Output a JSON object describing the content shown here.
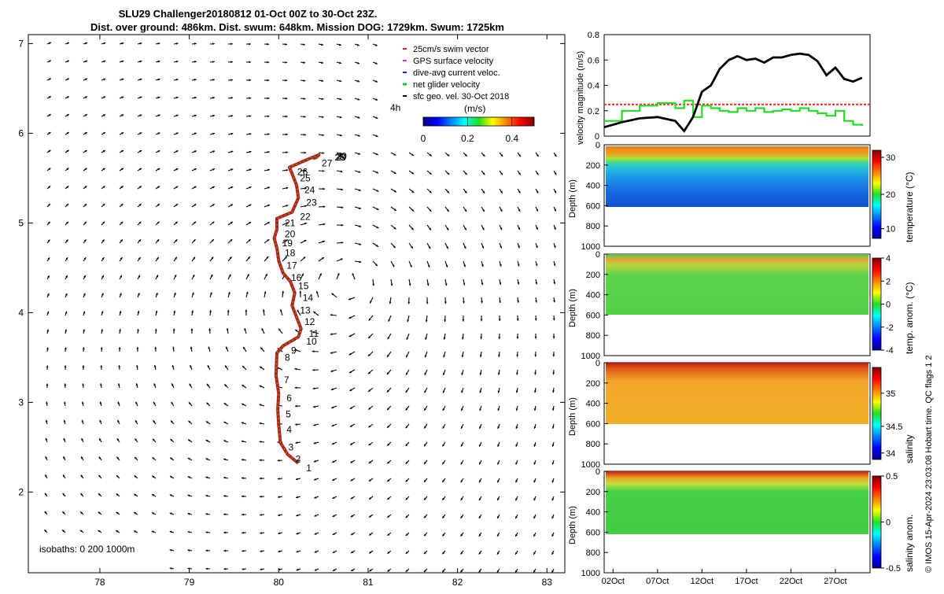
{
  "header": {
    "title_line1": "SLU29 Challenger20180812 01-Oct 00Z to 30-Oct 23Z.",
    "title_line2": "Dist. over ground: 486km. Dist. swum: 648km. Mission DOG: 1729km. Swum: 1725km"
  },
  "map": {
    "x_ticks": [
      "78",
      "79",
      "80",
      "81",
      "82",
      "83"
    ],
    "y_ticks": [
      "2",
      "3",
      "4",
      "5",
      "6",
      "7"
    ],
    "xlim": [
      77.2,
      83.2
    ],
    "ylim": [
      1.1,
      7.1
    ],
    "isobaths_label": "isobaths: 0   200  1000m",
    "legend": [
      {
        "label": "25cm/s swim vector",
        "color": "#d32020"
      },
      {
        "label": "GPS surface velocity",
        "color": "#c040c0"
      },
      {
        "label": "dive-avg current veloc.",
        "color": "#2020c0"
      },
      {
        "label": "net glider velocity",
        "color": "#20c020"
      },
      {
        "label": "sfc geo. vel. 30-Oct 2018",
        "color": "#000000"
      }
    ],
    "time_label": "4h",
    "colorbar_unit": "(m/s)",
    "colorbar_ticks": [
      "0",
      "0.2",
      "0.4"
    ],
    "day_labels": [
      "1",
      "2",
      "3",
      "4",
      "5",
      "6",
      "7",
      "8",
      "9",
      "10",
      "11",
      "12",
      "13",
      "14",
      "15",
      "16",
      "17",
      "18",
      "19",
      "20",
      "21",
      "22",
      "23",
      "24",
      "25",
      "26",
      "27",
      "28",
      "29",
      "30"
    ]
  },
  "velocity_panel": {
    "ylabel": "velocity magnitude (m/s)",
    "y_ticks": [
      "0",
      "0.2",
      "0.4",
      "0.6",
      "0.8"
    ],
    "threshold": 0.25,
    "colors": {
      "black_line": "#000000",
      "green_line": "#22dd22",
      "threshold": "#ff2020"
    }
  },
  "sections": [
    {
      "name": "temperature",
      "cbar_label": "temperature (°C)",
      "cbar_ticks": [
        "10",
        "20",
        "30"
      ]
    },
    {
      "name": "temp-anomaly",
      "cbar_label": "temp. anom. (°C)",
      "cbar_ticks": [
        "-4",
        "-2",
        "0",
        "2",
        "4"
      ]
    },
    {
      "name": "salinity",
      "cbar_label": "salinity",
      "cbar_ticks": [
        "34",
        "34.5",
        "35"
      ]
    },
    {
      "name": "salinity-anomaly",
      "cbar_label": "salinity anom.",
      "cbar_ticks": [
        "-0.5",
        "0",
        "0.5"
      ]
    }
  ],
  "depth_axis": {
    "label": "Depth (m)",
    "ticks": [
      "0",
      "200",
      "400",
      "600",
      "800",
      "1000"
    ]
  },
  "time_axis": {
    "ticks": [
      "02Oct",
      "07Oct",
      "12Oct",
      "17Oct",
      "22Oct",
      "27Oct"
    ]
  },
  "footer": {
    "credit": "© IMOS 15-Apr-2024 23:03:08 Hobart time. QC flags 1  2"
  },
  "chart_data": [
    {
      "type": "scatter",
      "title": "SLU29 Challenger20180812 01-Oct 00Z to 30-Oct 23Z.",
      "description": "glider track",
      "x": [
        80.22,
        80.1,
        80.02,
        80.0,
        79.99,
        80.0,
        79.97,
        79.98,
        80.05,
        80.22,
        80.25,
        80.2,
        80.15,
        80.18,
        80.13,
        80.05,
        80.0,
        79.98,
        79.95,
        79.98,
        79.98,
        80.15,
        80.22,
        80.2,
        80.15,
        80.12,
        80.35,
        80.45,
        80.42,
        80.38
      ],
      "y": [
        2.32,
        2.42,
        2.55,
        2.75,
        2.92,
        3.1,
        3.3,
        3.55,
        3.63,
        3.73,
        3.82,
        3.95,
        4.08,
        4.22,
        4.35,
        4.44,
        4.58,
        4.72,
        4.83,
        4.93,
        5.05,
        5.12,
        5.28,
        5.42,
        5.55,
        5.62,
        5.72,
        5.76,
        5.73,
        5.72
      ]
    },
    {
      "type": "line",
      "ylabel": "velocity magnitude (m/s)",
      "ylim": [
        0,
        0.8
      ],
      "x": [
        "01Oct",
        "03Oct",
        "05Oct",
        "07Oct",
        "09Oct",
        "10Oct",
        "11Oct",
        "12Oct",
        "13Oct",
        "14Oct",
        "15Oct",
        "16Oct",
        "17Oct",
        "18Oct",
        "19Oct",
        "20Oct",
        "21Oct",
        "22Oct",
        "23Oct",
        "24Oct",
        "25Oct",
        "26Oct",
        "27Oct",
        "28Oct",
        "29Oct",
        "30Oct"
      ],
      "series": [
        {
          "values": [
            0.07,
            0.11,
            0.14,
            0.15,
            0.12,
            0.04,
            0.15,
            0.35,
            0.4,
            0.53,
            0.6,
            0.63,
            0.6,
            0.61,
            0.58,
            0.62,
            0.62,
            0.64,
            0.65,
            0.64,
            0.59,
            0.48,
            0.54,
            0.45,
            0.43,
            0.46
          ]
        },
        {
          "values": [
            0.12,
            0.2,
            0.24,
            0.26,
            0.22,
            0.28,
            0.15,
            0.24,
            0.22,
            0.2,
            0.19,
            0.22,
            0.2,
            0.22,
            0.19,
            0.2,
            0.21,
            0.2,
            0.22,
            0.2,
            0.18,
            0.16,
            0.2,
            0.12,
            0.09,
            0.08
          ]
        }
      ]
    }
  ]
}
